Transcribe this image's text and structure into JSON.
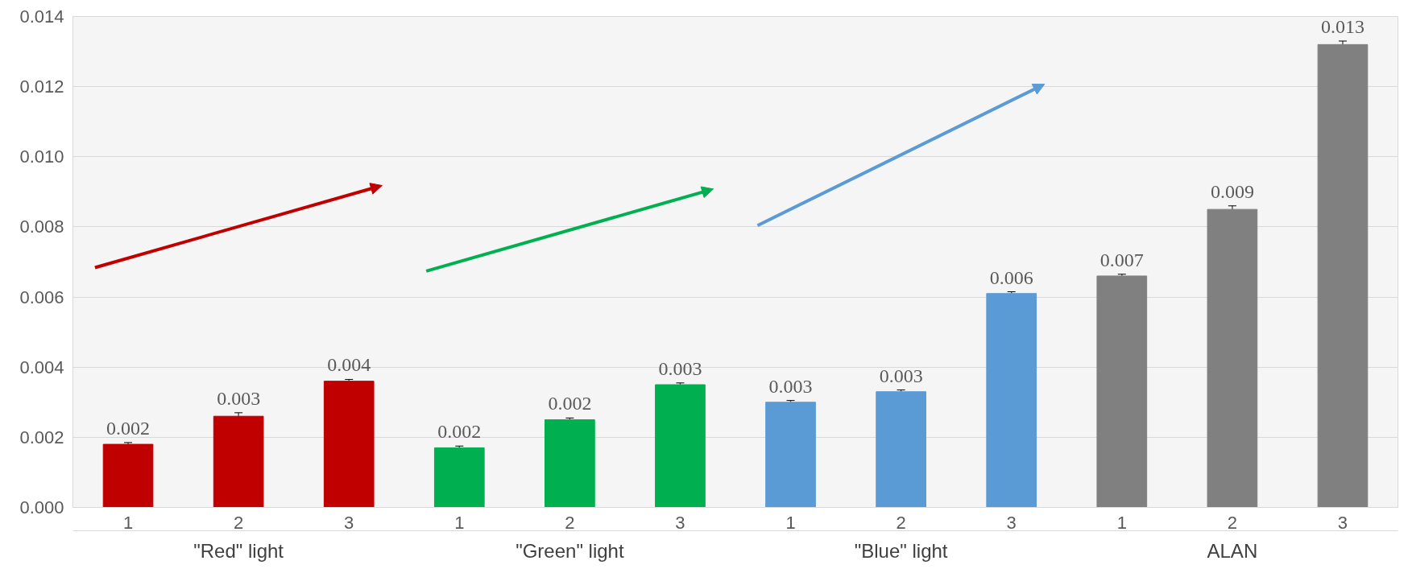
{
  "chart_data": {
    "type": "bar",
    "categories": [
      "1",
      "2",
      "3",
      "1",
      "2",
      "3",
      "1",
      "2",
      "3",
      "1",
      "2",
      "3"
    ],
    "series": [
      {
        "name": "\"Red\" light",
        "color": "#c00000",
        "values": [
          0.0018,
          0.0026,
          0.0036,
          null,
          null,
          null,
          null,
          null,
          null,
          null,
          null,
          null
        ],
        "errors": [
          5e-05,
          0.0001,
          5e-05,
          null,
          null,
          null,
          null,
          null,
          null,
          null,
          null,
          null
        ],
        "value_labels": [
          "0.002",
          "0.003",
          "0.004",
          null,
          null,
          null,
          null,
          null,
          null,
          null,
          null,
          null
        ]
      },
      {
        "name": "\"Green\" light",
        "color": "#00b050",
        "values": [
          null,
          null,
          null,
          0.0017,
          0.0025,
          0.0035,
          null,
          null,
          null,
          null,
          null,
          null
        ],
        "errors": [
          null,
          null,
          null,
          5e-05,
          5e-05,
          5e-05,
          null,
          null,
          null,
          null,
          null,
          null
        ],
        "value_labels": [
          null,
          null,
          null,
          "0.002",
          "0.002",
          "0.003",
          null,
          null,
          null,
          null,
          null,
          null
        ]
      },
      {
        "name": "\"Blue\" light",
        "color": "#5b9bd5",
        "values": [
          null,
          null,
          null,
          null,
          null,
          null,
          0.003,
          0.0033,
          0.0061,
          null,
          null,
          null
        ],
        "errors": [
          null,
          null,
          null,
          null,
          null,
          null,
          5e-05,
          5e-05,
          5e-05,
          null,
          null,
          null
        ],
        "value_labels": [
          null,
          null,
          null,
          null,
          null,
          null,
          "0.003",
          "0.003",
          "0.006",
          null,
          null,
          null
        ]
      },
      {
        "name": "ALAN",
        "color": "#808080",
        "values": [
          null,
          null,
          null,
          null,
          null,
          null,
          null,
          null,
          null,
          0.0066,
          0.0085,
          0.0132
        ],
        "errors": [
          null,
          null,
          null,
          null,
          null,
          null,
          null,
          null,
          null,
          5e-05,
          0.0001,
          0.0001
        ],
        "value_labels": [
          null,
          null,
          null,
          null,
          null,
          null,
          null,
          null,
          null,
          "0.007",
          "0.009",
          "0.013"
        ]
      }
    ],
    "ylim": [
      0,
      0.014
    ],
    "yticks": [
      {
        "value": 0,
        "label": "0.000"
      },
      {
        "value": 0.002,
        "label": "0.002"
      },
      {
        "value": 0.004,
        "label": "0.004"
      },
      {
        "value": 0.006,
        "label": "0.006"
      },
      {
        "value": 0.008,
        "label": "0.008"
      },
      {
        "value": 0.01,
        "label": "0.010"
      },
      {
        "value": 0.012,
        "label": "0.012"
      },
      {
        "value": 0.014,
        "label": "0.014"
      }
    ],
    "grid": "y"
  }
}
